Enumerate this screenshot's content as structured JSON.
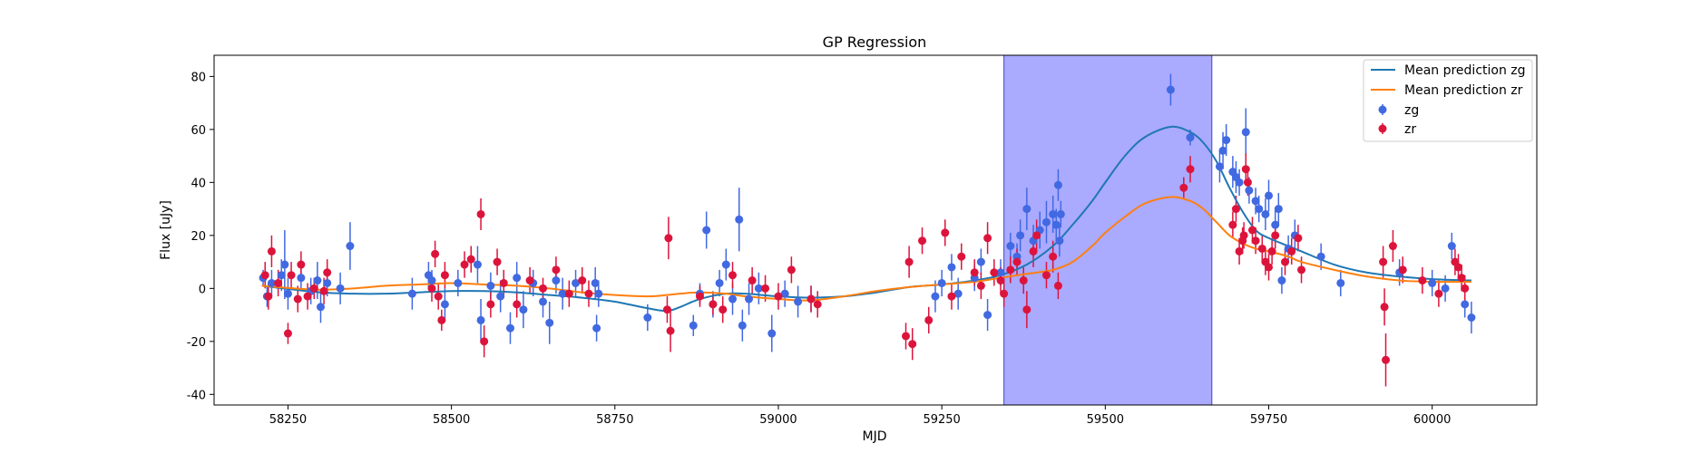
{
  "chart_data": {
    "type": "scatter",
    "title": "GP Regression",
    "xlabel": "MJD",
    "ylabel": "Flux [uJy]",
    "xlim": [
      58137,
      60160
    ],
    "ylim": [
      -44,
      88
    ],
    "xticks": [
      58250,
      58500,
      58750,
      59000,
      59250,
      59500,
      59750,
      60000
    ],
    "yticks": [
      -40,
      -20,
      0,
      20,
      40,
      60,
      80
    ],
    "grid": false,
    "legend_position": "top-right",
    "shaded_region": {
      "x_start": 59345,
      "x_end": 59663,
      "color": "#a6a6ff"
    },
    "colors": {
      "zg_line": "#1f77b4",
      "zr_line": "#ff7f0e",
      "zg_points": "#4169e1",
      "zr_points": "#dc143c"
    },
    "lines": [
      {
        "name": "Mean prediction zg",
        "x": [
          58210,
          58260,
          58300,
          58350,
          58400,
          58450,
          58500,
          58550,
          58600,
          58650,
          58700,
          58750,
          58800,
          58830,
          58850,
          58880,
          58920,
          58950,
          59000,
          59050,
          59100,
          59150,
          59200,
          59250,
          59300,
          59340,
          59380,
          59420,
          59450,
          59480,
          59500,
          59530,
          59560,
          59600,
          59630,
          59650,
          59670,
          59690,
          59710,
          59730,
          59750,
          59780,
          59800,
          59850,
          59900,
          59950,
          60000,
          60060
        ],
        "y": [
          1,
          -0.5,
          -1.5,
          -2,
          -2,
          -1.5,
          -1,
          -1,
          -1.5,
          -2.5,
          -3.5,
          -5,
          -7.5,
          -8.5,
          -7,
          -4,
          -2,
          -2,
          -3,
          -3.5,
          -3,
          -1.5,
          0.5,
          1.5,
          3,
          5,
          9,
          16,
          24,
          33,
          40,
          50,
          57,
          61,
          59,
          55,
          48,
          38,
          29,
          22,
          19,
          16,
          14,
          9,
          6,
          4.5,
          3.5,
          3
        ]
      },
      {
        "name": "Mean prediction zr",
        "x": [
          58210,
          58260,
          58300,
          58350,
          58400,
          58450,
          58500,
          58550,
          58600,
          58650,
          58700,
          58750,
          58800,
          58830,
          58850,
          58880,
          58920,
          58950,
          59000,
          59050,
          59100,
          59150,
          59200,
          59250,
          59300,
          59340,
          59380,
          59420,
          59450,
          59480,
          59500,
          59530,
          59560,
          59600,
          59630,
          59650,
          59670,
          59690,
          59710,
          59730,
          59750,
          59780,
          59800,
          59850,
          59900,
          59950,
          60000,
          60060
        ],
        "y": [
          1,
          0,
          -0.5,
          0,
          1,
          1.5,
          2,
          1.5,
          1,
          0,
          -1.5,
          -2.5,
          -3,
          -2.5,
          -2,
          -1.5,
          -2,
          -3,
          -4,
          -4.5,
          -3,
          -1,
          0.5,
          1.5,
          2.5,
          4,
          5.5,
          7,
          10,
          16,
          21,
          27,
          32,
          34.5,
          33,
          30,
          25,
          20,
          17,
          15,
          14,
          12,
          10,
          7,
          4.5,
          3,
          2.5,
          2.5
        ]
      }
    ],
    "series": [
      {
        "name": "zg",
        "points": [
          [
            58212,
            4,
            3
          ],
          [
            58218,
            -3,
            4
          ],
          [
            58225,
            2,
            5
          ],
          [
            58240,
            5,
            6
          ],
          [
            58245,
            9,
            13
          ],
          [
            58250,
            -2,
            6
          ],
          [
            58270,
            4,
            5
          ],
          [
            58285,
            -1,
            5
          ],
          [
            58295,
            3,
            7
          ],
          [
            58300,
            -7,
            6
          ],
          [
            58310,
            2,
            5
          ],
          [
            58330,
            0,
            6
          ],
          [
            58345,
            16,
            9
          ],
          [
            58440,
            -2,
            6
          ],
          [
            58465,
            5,
            5
          ],
          [
            58470,
            3,
            4
          ],
          [
            58490,
            -6,
            6
          ],
          [
            58510,
            2,
            5
          ],
          [
            58540,
            9,
            7
          ],
          [
            58545,
            -12,
            8
          ],
          [
            58560,
            1,
            5
          ],
          [
            58575,
            -3,
            6
          ],
          [
            58590,
            -15,
            6
          ],
          [
            58600,
            4,
            6
          ],
          [
            58610,
            -8,
            7
          ],
          [
            58625,
            2,
            5
          ],
          [
            58640,
            -5,
            6
          ],
          [
            58650,
            -13,
            8
          ],
          [
            58660,
            3,
            5
          ],
          [
            58670,
            -2,
            6
          ],
          [
            58690,
            2,
            5
          ],
          [
            58720,
            2,
            6
          ],
          [
            58722,
            -15,
            5
          ],
          [
            58725,
            -2,
            5
          ],
          [
            58800,
            -11,
            5
          ],
          [
            58870,
            -14,
            4
          ],
          [
            58880,
            -2,
            4
          ],
          [
            58890,
            22,
            7
          ],
          [
            58900,
            -6,
            5
          ],
          [
            58910,
            2,
            5
          ],
          [
            58920,
            9,
            6
          ],
          [
            58930,
            -4,
            6
          ],
          [
            58940,
            26,
            12
          ],
          [
            58945,
            -14,
            6
          ],
          [
            58955,
            -4,
            6
          ],
          [
            58970,
            0,
            6
          ],
          [
            58990,
            -17,
            7
          ],
          [
            59010,
            -2,
            5
          ],
          [
            59030,
            -5,
            6
          ],
          [
            59050,
            -4,
            5
          ],
          [
            59240,
            -3,
            6
          ],
          [
            59250,
            2,
            5
          ],
          [
            59265,
            8,
            5
          ],
          [
            59275,
            -2,
            6
          ],
          [
            59300,
            4,
            5
          ],
          [
            59310,
            10,
            5
          ],
          [
            59320,
            -10,
            6
          ],
          [
            59340,
            6,
            5
          ],
          [
            59355,
            16,
            5
          ],
          [
            59365,
            12,
            5
          ],
          [
            59370,
            20,
            6
          ],
          [
            59380,
            30,
            8
          ],
          [
            59390,
            18,
            6
          ],
          [
            59400,
            22,
            7
          ],
          [
            59410,
            25,
            8
          ],
          [
            59420,
            28,
            7
          ],
          [
            59425,
            24,
            6
          ],
          [
            59428,
            39,
            6
          ],
          [
            59430,
            18,
            6
          ],
          [
            59432,
            28,
            5
          ],
          [
            59600,
            75,
            6
          ],
          [
            59630,
            57,
            3
          ],
          [
            59675,
            46,
            6
          ],
          [
            59680,
            52,
            7
          ],
          [
            59685,
            56,
            6
          ],
          [
            59695,
            44,
            6
          ],
          [
            59700,
            42,
            6
          ],
          [
            59705,
            40,
            5
          ],
          [
            59715,
            59,
            9
          ],
          [
            59720,
            37,
            5
          ],
          [
            59730,
            33,
            5
          ],
          [
            59735,
            30,
            5
          ],
          [
            59745,
            28,
            6
          ],
          [
            59750,
            35,
            6
          ],
          [
            59760,
            24,
            6
          ],
          [
            59765,
            30,
            6
          ],
          [
            59770,
            3,
            5
          ],
          [
            59780,
            15,
            5
          ],
          [
            59790,
            20,
            6
          ],
          [
            59830,
            12,
            5
          ],
          [
            59860,
            2,
            5
          ],
          [
            59950,
            6,
            5
          ],
          [
            60000,
            2,
            5
          ],
          [
            60020,
            0,
            5
          ],
          [
            60030,
            16,
            5
          ],
          [
            60050,
            -6,
            5
          ],
          [
            60060,
            -11,
            6
          ]
        ]
      },
      {
        "name": "zr",
        "points": [
          [
            58215,
            5,
            5
          ],
          [
            58220,
            -3,
            5
          ],
          [
            58225,
            14,
            6
          ],
          [
            58235,
            2,
            5
          ],
          [
            58250,
            -17,
            4
          ],
          [
            58255,
            5,
            5
          ],
          [
            58265,
            -4,
            5
          ],
          [
            58270,
            9,
            5
          ],
          [
            58280,
            -3,
            5
          ],
          [
            58290,
            0,
            4
          ],
          [
            58305,
            -1,
            5
          ],
          [
            58310,
            6,
            5
          ],
          [
            58470,
            0,
            5
          ],
          [
            58475,
            13,
            5
          ],
          [
            58480,
            -3,
            5
          ],
          [
            58485,
            -12,
            4
          ],
          [
            58490,
            5,
            5
          ],
          [
            58520,
            9,
            5
          ],
          [
            58530,
            11,
            5
          ],
          [
            58545,
            28,
            6
          ],
          [
            58550,
            -20,
            6
          ],
          [
            58560,
            -6,
            5
          ],
          [
            58570,
            10,
            5
          ],
          [
            58580,
            2,
            5
          ],
          [
            58600,
            -6,
            5
          ],
          [
            58620,
            3,
            5
          ],
          [
            58640,
            0,
            4
          ],
          [
            58660,
            7,
            5
          ],
          [
            58680,
            -2,
            5
          ],
          [
            58700,
            3,
            5
          ],
          [
            58710,
            -2,
            5
          ],
          [
            58830,
            -8,
            5
          ],
          [
            58832,
            19,
            8
          ],
          [
            58835,
            -16,
            8
          ],
          [
            58880,
            -3,
            4
          ],
          [
            58900,
            -6,
            4
          ],
          [
            58915,
            -8,
            5
          ],
          [
            58930,
            5,
            5
          ],
          [
            58960,
            3,
            5
          ],
          [
            58980,
            0,
            5
          ],
          [
            59000,
            -3,
            5
          ],
          [
            59020,
            7,
            5
          ],
          [
            59050,
            -4,
            5
          ],
          [
            59060,
            -6,
            5
          ],
          [
            59195,
            -18,
            5
          ],
          [
            59200,
            10,
            6
          ],
          [
            59205,
            -21,
            6
          ],
          [
            59220,
            18,
            5
          ],
          [
            59230,
            -12,
            5
          ],
          [
            59255,
            21,
            5
          ],
          [
            59265,
            -3,
            5
          ],
          [
            59280,
            12,
            5
          ],
          [
            59300,
            6,
            5
          ],
          [
            59310,
            1,
            5
          ],
          [
            59320,
            19,
            6
          ],
          [
            59330,
            6,
            5
          ],
          [
            59340,
            3,
            5
          ],
          [
            59345,
            -2,
            5
          ],
          [
            59355,
            7,
            5
          ],
          [
            59365,
            10,
            5
          ],
          [
            59375,
            3,
            5
          ],
          [
            59380,
            -8,
            7
          ],
          [
            59390,
            14,
            6
          ],
          [
            59395,
            20,
            6
          ],
          [
            59410,
            5,
            5
          ],
          [
            59420,
            12,
            6
          ],
          [
            59428,
            1,
            5
          ],
          [
            59620,
            38,
            4
          ],
          [
            59630,
            45,
            5
          ],
          [
            59695,
            24,
            5
          ],
          [
            59700,
            30,
            5
          ],
          [
            59705,
            14,
            5
          ],
          [
            59710,
            18,
            5
          ],
          [
            59712,
            20,
            5
          ],
          [
            59715,
            45,
            6
          ],
          [
            59718,
            40,
            5
          ],
          [
            59725,
            22,
            5
          ],
          [
            59730,
            18,
            5
          ],
          [
            59740,
            15,
            5
          ],
          [
            59745,
            10,
            5
          ],
          [
            59750,
            8,
            5
          ],
          [
            59755,
            14,
            5
          ],
          [
            59760,
            20,
            5
          ],
          [
            59775,
            10,
            5
          ],
          [
            59785,
            14,
            5
          ],
          [
            59795,
            19,
            5
          ],
          [
            59800,
            7,
            5
          ],
          [
            59925,
            10,
            6
          ],
          [
            59927,
            -7,
            7
          ],
          [
            59929,
            -27,
            10
          ],
          [
            59940,
            16,
            6
          ],
          [
            59955,
            7,
            5
          ],
          [
            59985,
            3,
            5
          ],
          [
            60010,
            -2,
            5
          ],
          [
            60035,
            10,
            5
          ],
          [
            60040,
            8,
            5
          ],
          [
            60045,
            4,
            5
          ],
          [
            60050,
            0,
            5
          ]
        ]
      }
    ]
  }
}
